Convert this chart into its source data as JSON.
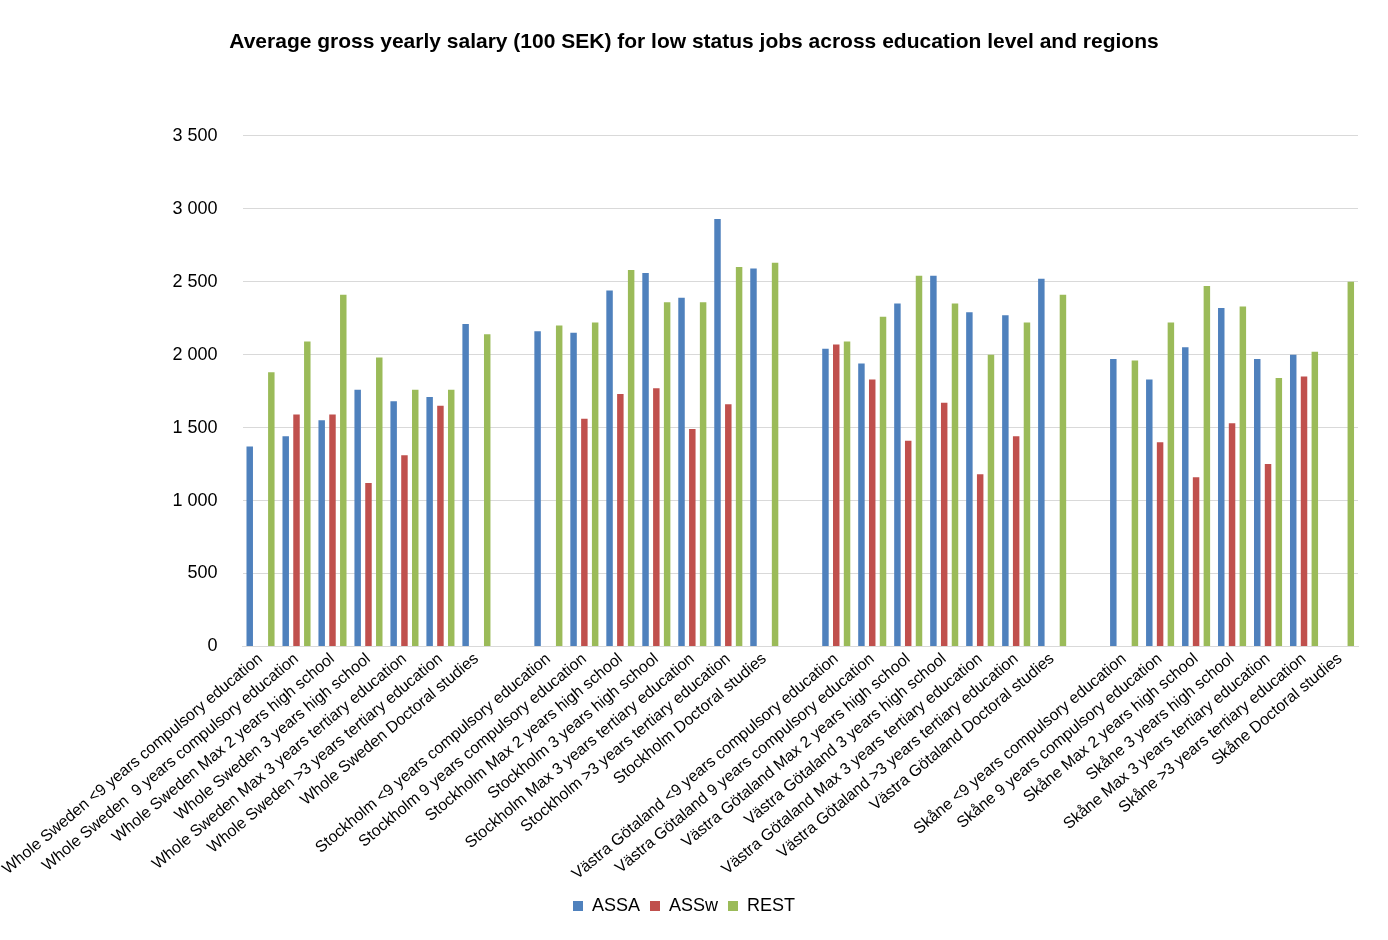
{
  "chart_data": {
    "type": "bar",
    "title": "Average gross yearly salary (100 SEK) for low status jobs across education level and regions",
    "categories": [
      "Whole Sweden <9 years compulsory education",
      "Whole Sweden  9 years compulsory education",
      "Whole Sweden Max 2 years high school",
      "Whole Sweden 3 years high school",
      "Whole Sweden Max 3 years tertiary education",
      "Whole Sweden >3 years tertiary education",
      "Whole Sweden Doctoral studies",
      null,
      "Stockholm <9 years compulsory education",
      "Stockholm 9 years compulsory education",
      "Stockholm Max 2 years high school",
      "Stockholm 3 years high school",
      "Stockholm Max 3 years tertiary education",
      "Stockholm >3 years tertiary education",
      "Stockholm Doctoral studies",
      null,
      "Västra Götaland <9 years compulsory education",
      "Västra Götaland 9 years compulsory education",
      "Västra Götaland Max 2 years high school",
      "Västra Götaland 3 years high school",
      "Västra Götaland Max 3 years tertiary education",
      "Västra Götaland >3 years tertiary education",
      "Västra Götaland Doctoral studies",
      null,
      "Skåne <9 years compulsory education",
      "Skåne 9 years compulsory education",
      "Skåne Max 2 years high school",
      "Skåne 3 years high school",
      "Skåne Max 3 years tertiary education",
      "Skåne >3 years tertiary education",
      "Skåne Doctoral studies"
    ],
    "series": [
      {
        "name": "ASSA",
        "color": "#4f81bd",
        "values": [
          1370,
          1440,
          1550,
          1760,
          1680,
          1710,
          2210,
          null,
          2160,
          2150,
          2440,
          2560,
          2390,
          2930,
          2590,
          null,
          2040,
          1940,
          2350,
          2540,
          2290,
          2270,
          2520,
          null,
          1970,
          1830,
          2050,
          2320,
          1970,
          2000,
          null
        ]
      },
      {
        "name": "ASSw",
        "color": "#c0504d",
        "values": [
          null,
          1590,
          1590,
          1120,
          1310,
          1650,
          null,
          null,
          null,
          1560,
          1730,
          1770,
          1490,
          1660,
          null,
          null,
          2070,
          1830,
          1410,
          1670,
          1180,
          1440,
          null,
          null,
          null,
          1400,
          1160,
          1530,
          1250,
          1850,
          null
        ]
      },
      {
        "name": "REST",
        "color": "#9bbb59",
        "values": [
          1880,
          2090,
          2410,
          1980,
          1760,
          1760,
          2140,
          null,
          2200,
          2220,
          2580,
          2360,
          2360,
          2600,
          2630,
          null,
          2090,
          2260,
          2540,
          2350,
          2000,
          2220,
          2410,
          null,
          1960,
          2220,
          2470,
          2330,
          1840,
          2020,
          2500
        ]
      }
    ],
    "ylim": [
      0,
      3500
    ],
    "yticks": [
      0,
      {
        "value": 500,
        "label": "500"
      },
      {
        "value": 1000,
        "label": "1 000"
      },
      {
        "value": 1500,
        "label": "1 500"
      },
      {
        "value": 2000,
        "label": "2 000"
      },
      {
        "value": 2500,
        "label": "2 500"
      },
      {
        "value": 3000,
        "label": "3 000"
      },
      {
        "value": 3500,
        "label": "3 500"
      }
    ],
    "grid": "y",
    "legend": "bottom"
  }
}
